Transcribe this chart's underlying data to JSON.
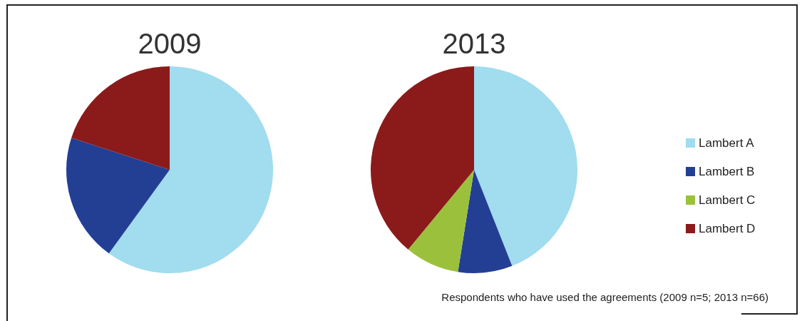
{
  "chart_data": [
    {
      "type": "pie",
      "title": "2009",
      "categories": [
        null,
        null,
        null,
        null
      ],
      "values": [
        60,
        20,
        0,
        20
      ],
      "colors": [
        "#a1dcef",
        "#233f94",
        "#9bc13c",
        "#8b1a1a"
      ]
    },
    {
      "type": "pie",
      "title": "2013",
      "categories": [
        "Lambert A",
        "Lambert B",
        "Lambert C",
        "Lambert D"
      ],
      "values": [
        44,
        8.5,
        8.5,
        39
      ],
      "colors": [
        "#a1dcef",
        "#233f94",
        "#9bc13c",
        "#8b1a1a"
      ],
      "legend": "right",
      "annotations": [
        "Respondents who have used the agreements (2009 n=5; 2013 n=66)"
      ]
    }
  ]
}
